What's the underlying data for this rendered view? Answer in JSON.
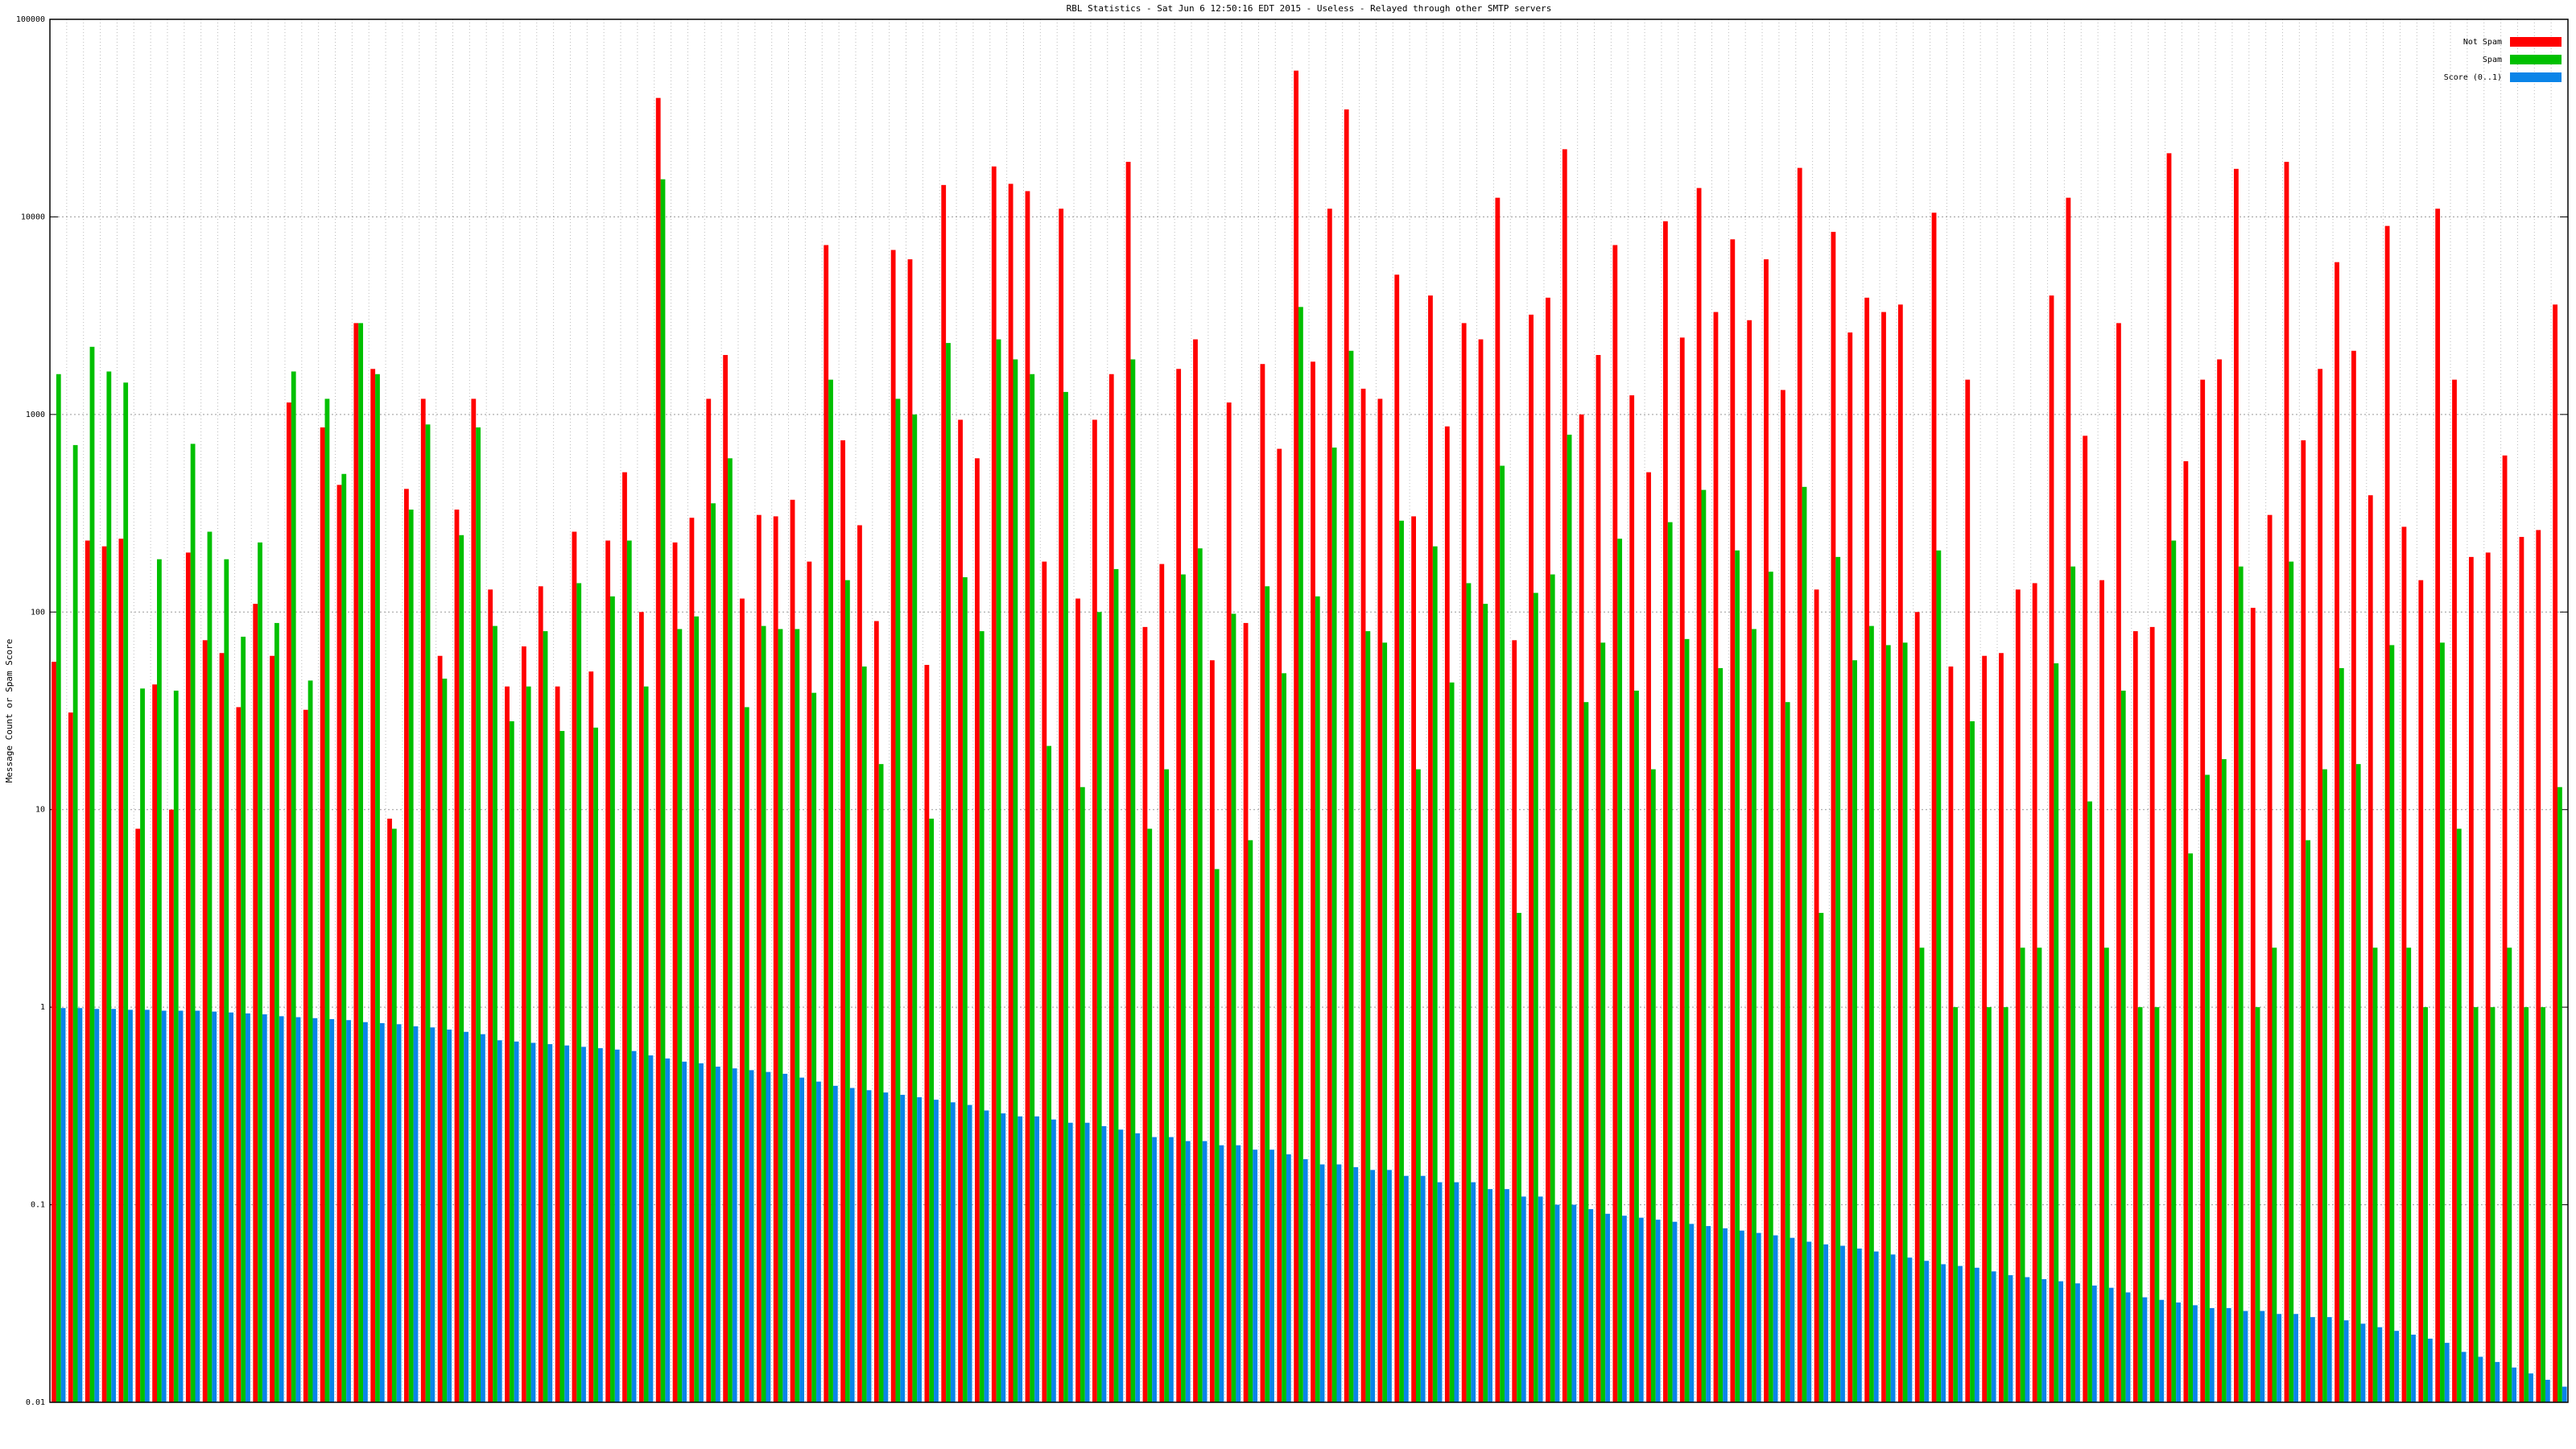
{
  "chart_data": {
    "type": "bar",
    "title": "RBL Statistics - Sat Jun 6 12:50:16 EDT 2015 - Useless - Relayed through other SMTP servers",
    "y_label": "Message Count or Spam Score",
    "log_y": true,
    "grid": true,
    "legend": "top-right",
    "ylim": [
      0.01,
      100000
    ],
    "yticks": [
      0.01,
      0.1,
      1,
      10,
      100,
      1000,
      10000,
      100000
    ],
    "categories": [
      null,
      null,
      null,
      null,
      null,
      null,
      null,
      null,
      null,
      null,
      null,
      null,
      null,
      null,
      null,
      null,
      null,
      null,
      null,
      null,
      null,
      null,
      null,
      null,
      null,
      null,
      null,
      null,
      null,
      null,
      null,
      null,
      null,
      null,
      null,
      null,
      null,
      null,
      null,
      null,
      null,
      null,
      null,
      null,
      null,
      null,
      null,
      null,
      null,
      null,
      null,
      null,
      null,
      null,
      null,
      null,
      null,
      null,
      null,
      null,
      null,
      null,
      null,
      null,
      null,
      null,
      null,
      null,
      null,
      null,
      null,
      null,
      null,
      null,
      null,
      null,
      null,
      null,
      null,
      null,
      null,
      null,
      null,
      null,
      null,
      null,
      null,
      null,
      null,
      null,
      null,
      null,
      null,
      null,
      null,
      null,
      null,
      null,
      null,
      null,
      null,
      null,
      null,
      null,
      null,
      null,
      null,
      null,
      null,
      null,
      null,
      null,
      null,
      null,
      null,
      null,
      null,
      null,
      null,
      null,
      null,
      null,
      null,
      null,
      null,
      null,
      null,
      null,
      null,
      null,
      null,
      null,
      null,
      null,
      null,
      null,
      null,
      null,
      null,
      null,
      null,
      null,
      null,
      null,
      null,
      null,
      null,
      null,
      null,
      null
    ],
    "series": [
      {
        "name": "Not Spam",
        "color": "#ff0000",
        "values": [
          56,
          31,
          230,
          215,
          235,
          8,
          43,
          10,
          200,
          72,
          62,
          33,
          110,
          60,
          1150,
          32,
          860,
          440,
          2900,
          1700,
          9,
          420,
          1200,
          60,
          330,
          1200,
          130,
          42,
          67,
          135,
          42,
          255,
          50,
          230,
          510,
          100,
          40000,
          225,
          300,
          1200,
          2000,
          117,
          310,
          305,
          370,
          180,
          7200,
          740,
          275,
          90,
          6800,
          6100,
          54,
          14500,
          940,
          600,
          18000,
          14700,
          13500,
          180,
          11000,
          117,
          940,
          1600,
          19000,
          84,
          175,
          1700,
          2400,
          57,
          1150,
          88,
          1800,
          670,
          55000,
          1850,
          11000,
          35000,
          1350,
          1200,
          5100,
          305,
          4000,
          870,
          2900,
          2400,
          12500,
          72,
          3200,
          3900,
          22000,
          1000,
          2000,
          7200,
          1250,
          510,
          9500,
          2450,
          14000,
          3300,
          7700,
          3000,
          6100,
          1330,
          17700,
          130,
          8400,
          2600,
          3900,
          3300,
          3600,
          100,
          10500,
          53,
          1500,
          60,
          62,
          130,
          140,
          4000,
          12500,
          780,
          145,
          2900,
          80,
          84,
          21000,
          580,
          1500,
          1900,
          17500,
          105,
          310,
          19000,
          740,
          1700,
          5900,
          2100,
          390,
          9000,
          270,
          145,
          11000,
          1500,
          190,
          200,
          620,
          240,
          260,
          3600
        ]
      },
      {
        "name": "Spam",
        "color": "#00c000",
        "values": [
          1600,
          700,
          2200,
          1650,
          1450,
          41,
          185,
          40,
          710,
          255,
          185,
          75,
          225,
          88,
          1650,
          45,
          1200,
          500,
          2900,
          1600,
          8,
          330,
          890,
          46,
          245,
          860,
          85,
          28,
          42,
          80,
          25,
          140,
          26,
          120,
          230,
          42,
          15500,
          82,
          95,
          355,
          600,
          33,
          85,
          82,
          82,
          39,
          1500,
          145,
          53,
          17,
          1200,
          1000,
          9,
          2300,
          150,
          80,
          2400,
          1900,
          1600,
          21,
          1300,
          13,
          100,
          165,
          1900,
          8,
          16,
          155,
          210,
          5,
          98,
          7,
          135,
          49,
          3500,
          120,
          680,
          2100,
          80,
          70,
          290,
          16,
          215,
          44,
          140,
          110,
          550,
          3,
          125,
          155,
          790,
          35,
          70,
          235,
          40,
          16,
          285,
          73,
          415,
          52,
          205,
          82,
          160,
          35,
          430,
          3,
          190,
          57,
          85,
          68,
          70,
          2,
          205,
          1,
          28,
          1,
          1,
          2,
          2,
          55,
          170,
          11,
          2,
          40,
          1,
          1,
          230,
          6,
          15,
          18,
          170,
          1,
          2,
          180,
          7,
          16,
          52,
          17,
          2,
          68,
          2,
          1,
          70,
          8,
          1,
          1,
          2,
          1,
          1,
          13
        ]
      },
      {
        "name": "Score (0..1)",
        "color": "#0a84e8",
        "values": [
          0.99,
          0.99,
          0.98,
          0.98,
          0.97,
          0.97,
          0.96,
          0.96,
          0.96,
          0.95,
          0.94,
          0.93,
          0.92,
          0.9,
          0.89,
          0.88,
          0.87,
          0.86,
          0.84,
          0.83,
          0.82,
          0.8,
          0.79,
          0.77,
          0.75,
          0.73,
          0.68,
          0.67,
          0.66,
          0.65,
          0.64,
          0.63,
          0.62,
          0.61,
          0.6,
          0.57,
          0.55,
          0.53,
          0.52,
          0.5,
          0.49,
          0.48,
          0.47,
          0.46,
          0.44,
          0.42,
          0.4,
          0.39,
          0.38,
          0.37,
          0.36,
          0.35,
          0.34,
          0.33,
          0.32,
          0.3,
          0.29,
          0.28,
          0.28,
          0.27,
          0.26,
          0.26,
          0.25,
          0.24,
          0.23,
          0.22,
          0.22,
          0.21,
          0.21,
          0.2,
          0.2,
          0.19,
          0.19,
          0.18,
          0.17,
          0.16,
          0.16,
          0.155,
          0.15,
          0.15,
          0.14,
          0.14,
          0.13,
          0.13,
          0.13,
          0.12,
          0.12,
          0.11,
          0.11,
          0.1,
          0.1,
          0.095,
          0.09,
          0.088,
          0.086,
          0.084,
          0.082,
          0.08,
          0.078,
          0.076,
          0.074,
          0.072,
          0.07,
          0.068,
          0.065,
          0.063,
          0.062,
          0.06,
          0.058,
          0.056,
          0.054,
          0.052,
          0.05,
          0.049,
          0.048,
          0.046,
          0.044,
          0.043,
          0.042,
          0.041,
          0.04,
          0.039,
          0.038,
          0.036,
          0.034,
          0.033,
          0.032,
          0.031,
          0.03,
          0.03,
          0.029,
          0.029,
          0.028,
          0.028,
          0.027,
          0.027,
          0.026,
          0.025,
          0.024,
          0.023,
          0.022,
          0.021,
          0.02,
          0.018,
          0.017,
          0.016,
          0.015,
          0.014,
          0.013,
          0.012
        ]
      }
    ]
  }
}
